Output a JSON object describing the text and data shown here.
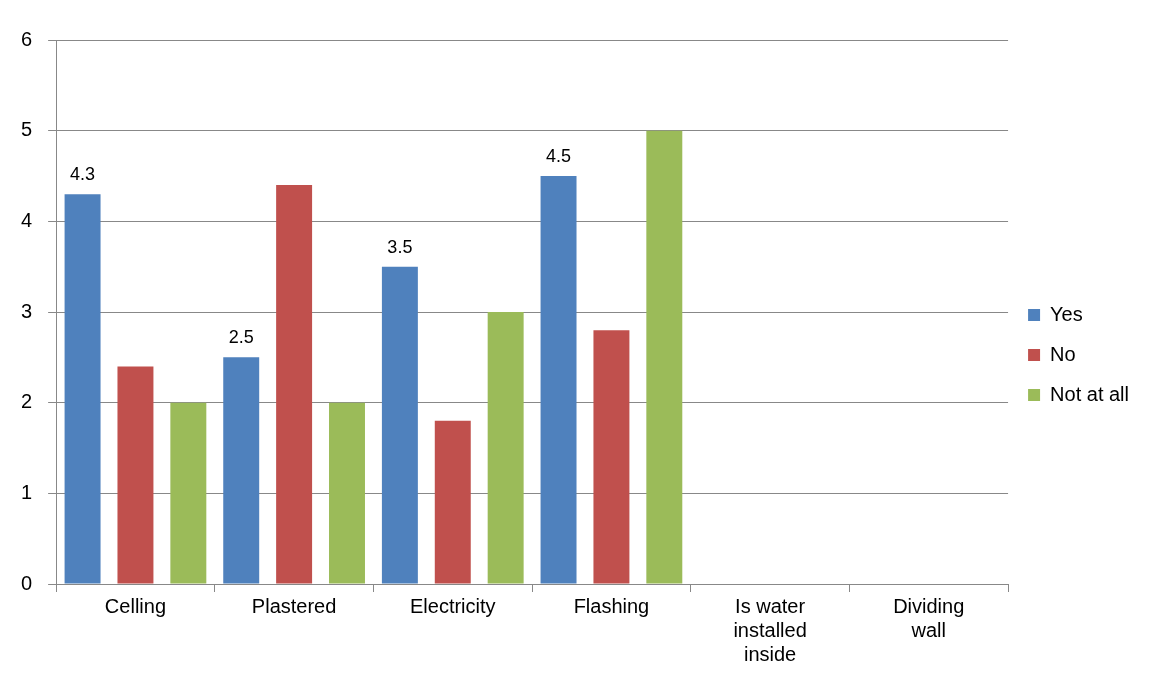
{
  "chart_data": {
    "type": "bar",
    "categories": [
      "Celling",
      "Plastered",
      "Electricity",
      "Flashing",
      "Is water installed inside",
      "Dividing wall"
    ],
    "series": [
      {
        "name": "Yes",
        "color": "#4f81bd",
        "values": [
          4.3,
          2.5,
          3.5,
          4.5,
          null,
          null
        ],
        "value_labels": [
          "4.3",
          "2.5",
          "3.5",
          "4.5",
          null,
          null
        ]
      },
      {
        "name": "No",
        "color": "#c0504d",
        "values": [
          2.4,
          4.4,
          1.8,
          2.8,
          null,
          null
        ]
      },
      {
        "name": "Not at all",
        "color": "#9bbb59",
        "values": [
          2,
          2,
          3,
          5,
          null,
          null
        ]
      }
    ],
    "ylim": [
      0,
      6
    ],
    "yticks": [
      0,
      1,
      2,
      3,
      4,
      5,
      6
    ],
    "grid": "y",
    "legend": "right"
  }
}
